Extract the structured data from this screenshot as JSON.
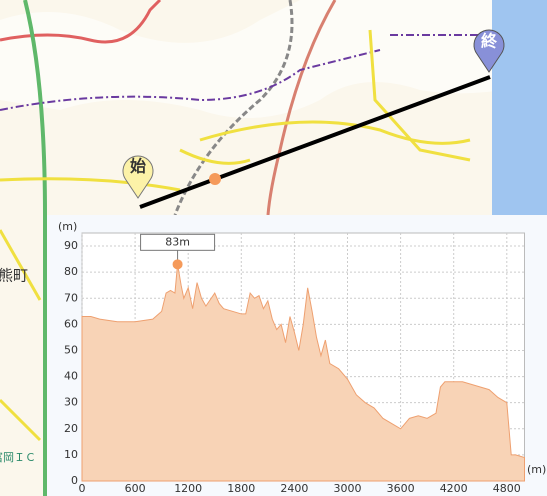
{
  "map": {
    "start": "始",
    "end": "終",
    "place": "熊町",
    "interchange": "富岡ＩＣ"
  },
  "chart_data": {
    "type": "area",
    "y_label": "(m)",
    "x_label": "(m)",
    "x": [
      0,
      100,
      200,
      400,
      600,
      800,
      900,
      950,
      1000,
      1050,
      1080,
      1120,
      1150,
      1200,
      1250,
      1300,
      1350,
      1400,
      1500,
      1550,
      1600,
      1700,
      1800,
      1850,
      1900,
      1950,
      2000,
      2050,
      2100,
      2150,
      2200,
      2250,
      2300,
      2350,
      2400,
      2450,
      2500,
      2550,
      2600,
      2650,
      2700,
      2750,
      2800,
      2900,
      3000,
      3100,
      3200,
      3300,
      3400,
      3500,
      3600,
      3650,
      3700,
      3800,
      3900,
      4000,
      4050,
      4100,
      4300,
      4400,
      4500,
      4600,
      4700,
      4800,
      4850,
      4900,
      5000
    ],
    "values": [
      63,
      63,
      62,
      61,
      61,
      62,
      65,
      72,
      73,
      72,
      83,
      75,
      70,
      74,
      66,
      76,
      70,
      67,
      72,
      68,
      66,
      65,
      64,
      64,
      72,
      70,
      71,
      66,
      69,
      62,
      58,
      60,
      53,
      63,
      57,
      50,
      60,
      74,
      65,
      55,
      48,
      54,
      45,
      43,
      39,
      33,
      30,
      28,
      24,
      22,
      20,
      22,
      24,
      25,
      24,
      26,
      36,
      38,
      38,
      37,
      36,
      35,
      32,
      30,
      10,
      10,
      9
    ],
    "color": "#f8d3b6",
    "annotation": {
      "text": "83m",
      "x": 1080,
      "y": 83
    },
    "xlim": [
      0,
      5000
    ],
    "ylim": [
      0,
      95
    ],
    "xticks": [
      0,
      600,
      1200,
      1800,
      2400,
      3000,
      3600,
      4200,
      4800
    ],
    "yticks": [
      0,
      10,
      20,
      30,
      40,
      50,
      60,
      70,
      80,
      90
    ],
    "grid": true
  }
}
